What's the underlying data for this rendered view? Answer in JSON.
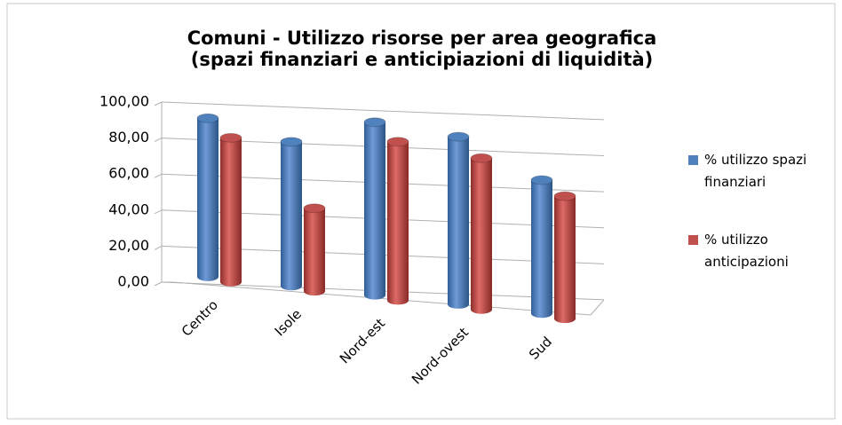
{
  "chart_data": {
    "type": "bar3d",
    "title": "Comuni - Utilizzo risorse per area geografica",
    "subtitle": "(spazi finanziari e anticipiazioni di liquidità)",
    "categories": [
      "Centro",
      "Isole",
      "Nord-est",
      "Nord-ovest",
      "Sud"
    ],
    "series": [
      {
        "name": "% utilizzo spazi finanziari",
        "color": "#4f81bd",
        "values": [
          88,
          80,
          96,
          93,
          74
        ]
      },
      {
        "name": "% utilizzo anticipazioni",
        "color": "#c0504d",
        "values": [
          80,
          46,
          88,
          84,
          68
        ]
      }
    ],
    "ylim": [
      0,
      100
    ],
    "yticks": [
      {
        "value": 0,
        "label": "0,00"
      },
      {
        "value": 20,
        "label": "20,00"
      },
      {
        "value": 40,
        "label": "40,00"
      },
      {
        "value": 60,
        "label": "60,00"
      },
      {
        "value": 80,
        "label": "80,00"
      },
      {
        "value": 100,
        "label": "100,00"
      }
    ],
    "grid": true,
    "legend": "right"
  }
}
